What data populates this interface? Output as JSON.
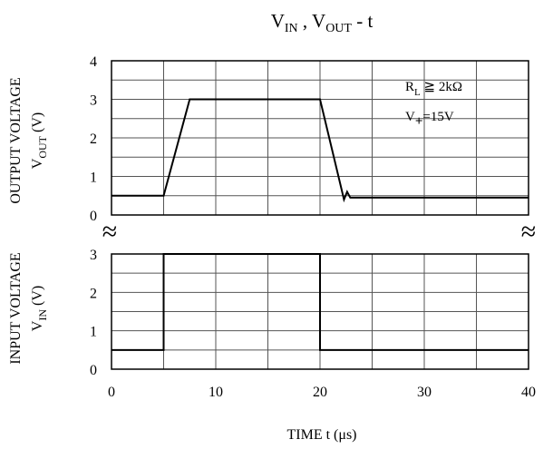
{
  "chart_data": {
    "type": "line",
    "title": "V_IN , V_OUT - t",
    "title_parts": {
      "v1": "V",
      "v1_sub": "IN",
      "sep": " , ",
      "v2": "V",
      "v2_sub": "OUT",
      "tail": " - t"
    },
    "xlabel": "TIME t (μs)",
    "xlim": [
      0,
      40
    ],
    "x_ticks": [
      0,
      10,
      20,
      30,
      40
    ],
    "x_grid_step": 5,
    "grid": true,
    "axis_break": "≈",
    "annotations": {
      "rl": {
        "main": "R",
        "sub": "L",
        "rest": " ≧ 2kΩ"
      },
      "vplus": {
        "main": "V",
        "sub": "+",
        "rest": "=15V"
      }
    },
    "panels": [
      {
        "name": "output",
        "ylabel_line1": "OUTPUT VOLTAGE",
        "ylabel_line2": {
          "main": "V",
          "sub": "OUT",
          "unit": " (V)"
        },
        "ylim": [
          0,
          4
        ],
        "y_ticks": [
          0,
          1,
          2,
          3,
          4
        ],
        "series": [
          {
            "x": [
              0,
              5,
              7.5,
              20,
              22.3,
              22.6,
              22.9,
              40
            ],
            "y": [
              0.5,
              0.5,
              3.0,
              3.0,
              0.4,
              0.6,
              0.45,
              0.45
            ]
          }
        ]
      },
      {
        "name": "input",
        "ylabel_line1": "INPUT VOLTAGE",
        "ylabel_line2": {
          "main": "V",
          "sub": "IN",
          "unit": " (V)"
        },
        "ylim": [
          0,
          3
        ],
        "y_ticks": [
          0,
          1,
          2,
          3
        ],
        "series": [
          {
            "x": [
              0,
              5,
              5,
              20,
              20,
              40
            ],
            "y": [
              0.5,
              0.5,
              3.0,
              3.0,
              0.5,
              0.5
            ]
          }
        ]
      }
    ]
  }
}
